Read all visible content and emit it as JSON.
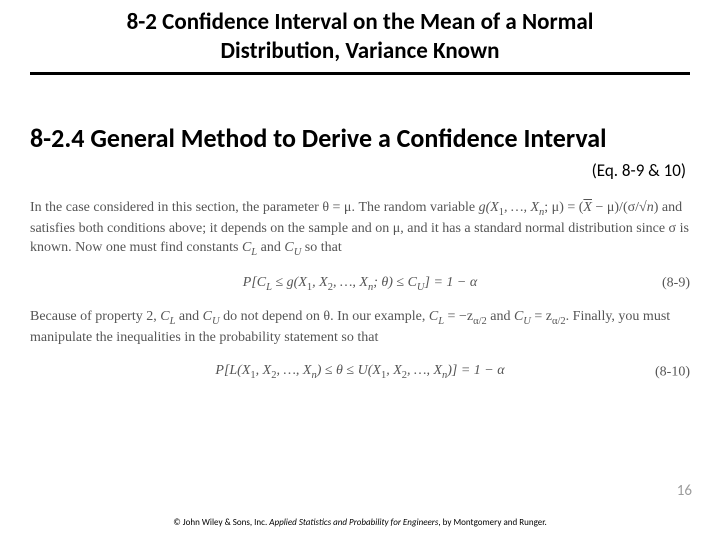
{
  "title_line1": "8-2 Confidence Interval on the Mean of a Normal",
  "title_line2": "Distribution, Variance Known",
  "subtitle": "8-2.4 General Method to Derive a Confidence Interval",
  "eqref": "(Eq. 8-9 & 10)",
  "para1_a": "In the case considered in this section, the parameter θ = μ. The random variable ",
  "para1_g": "g(X",
  "para1_b": ", …, ",
  "para1_xn": "X",
  "para1_c": "; μ) = (",
  "para1_xbar": "X",
  "para1_d": " − μ)/(σ/√",
  "para1_n": "n",
  "para1_e": ") and satisfies both conditions above; it depends on the sample and on μ, and it has a standard normal distribution since σ is known. Now one must find constants ",
  "para1_cl": "C",
  "para1_and": " and ",
  "para1_cu": "C",
  "para1_f": " so that",
  "eq89_a": "P[C",
  "eq89_b": " ≤ g(X",
  "eq89_c": ", X",
  "eq89_d": ", …, X",
  "eq89_e": "; θ) ≤ C",
  "eq89_f": "] = 1 − α",
  "eq89_num": "(8-9)",
  "para2_a": "Because of property 2, ",
  "para2_cl": "C",
  "para2_b": " and ",
  "para2_cu": "C",
  "para2_c": " do not depend on θ. In our example, ",
  "para2_d": " = −z",
  "para2_e": " and ",
  "para2_f": " = z",
  "para2_g": ". Finally, you must manipulate the inequalities in the probability statement so that",
  "eq810_a": "P[L(X",
  "eq810_b": ", X",
  "eq810_c": ", …, X",
  "eq810_d": ") ≤ θ ≤ U(X",
  "eq810_e": ", X",
  "eq810_f": ", …, X",
  "eq810_g": ")] = 1 − α",
  "eq810_num": "(8-10)",
  "sub1": "1",
  "sub2": "2",
  "subn": "n",
  "subL": "L",
  "subU": "U",
  "suba2": "α/2",
  "pagenum": "16",
  "copy_a": "© John Wiley & Sons, Inc.  ",
  "copy_title": "Applied Statistics and Probability for Engineers",
  "copy_b": ", by Montgomery and Runger."
}
